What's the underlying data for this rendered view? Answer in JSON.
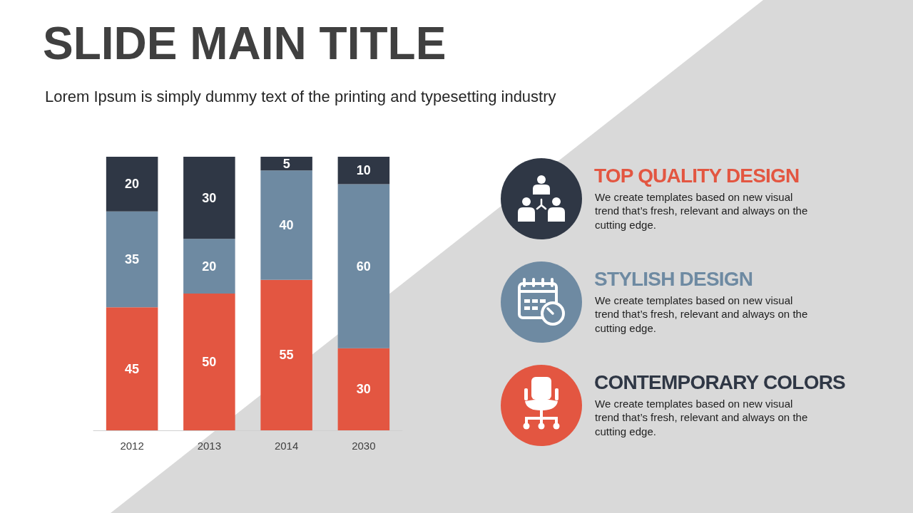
{
  "chart_data": {
    "type": "bar",
    "title": "SLIDE MAIN TITLE",
    "subtitle": "Lorem Ipsum is simply dummy text of the printing and typesetting industry",
    "categories": [
      "2012",
      "2013",
      "2014",
      "2030"
    ],
    "series": [
      {
        "color": "#e35641",
        "values": [
          45,
          50,
          55,
          30
        ]
      },
      {
        "color": "#6e8aa2",
        "values": [
          35,
          20,
          40,
          60
        ]
      },
      {
        "color": "#2f3745",
        "values": [
          20,
          30,
          5,
          10
        ]
      }
    ],
    "stacked": true,
    "data_labels": true,
    "tick_labels": "x",
    "annotations": [
      "TOP QUALITY DESIGN",
      "We create templates based on new visual trend that’s fresh, relevant and always on the cutting edge.",
      "STYLISH DESIGN",
      "We create templates based on new visual trend that’s fresh, relevant and always on the cutting edge.",
      "CONTEMPORARY COLORS",
      "We create templates based on new visual trend that’s fresh, relevant and always on the cutting edge."
    ]
  }
}
